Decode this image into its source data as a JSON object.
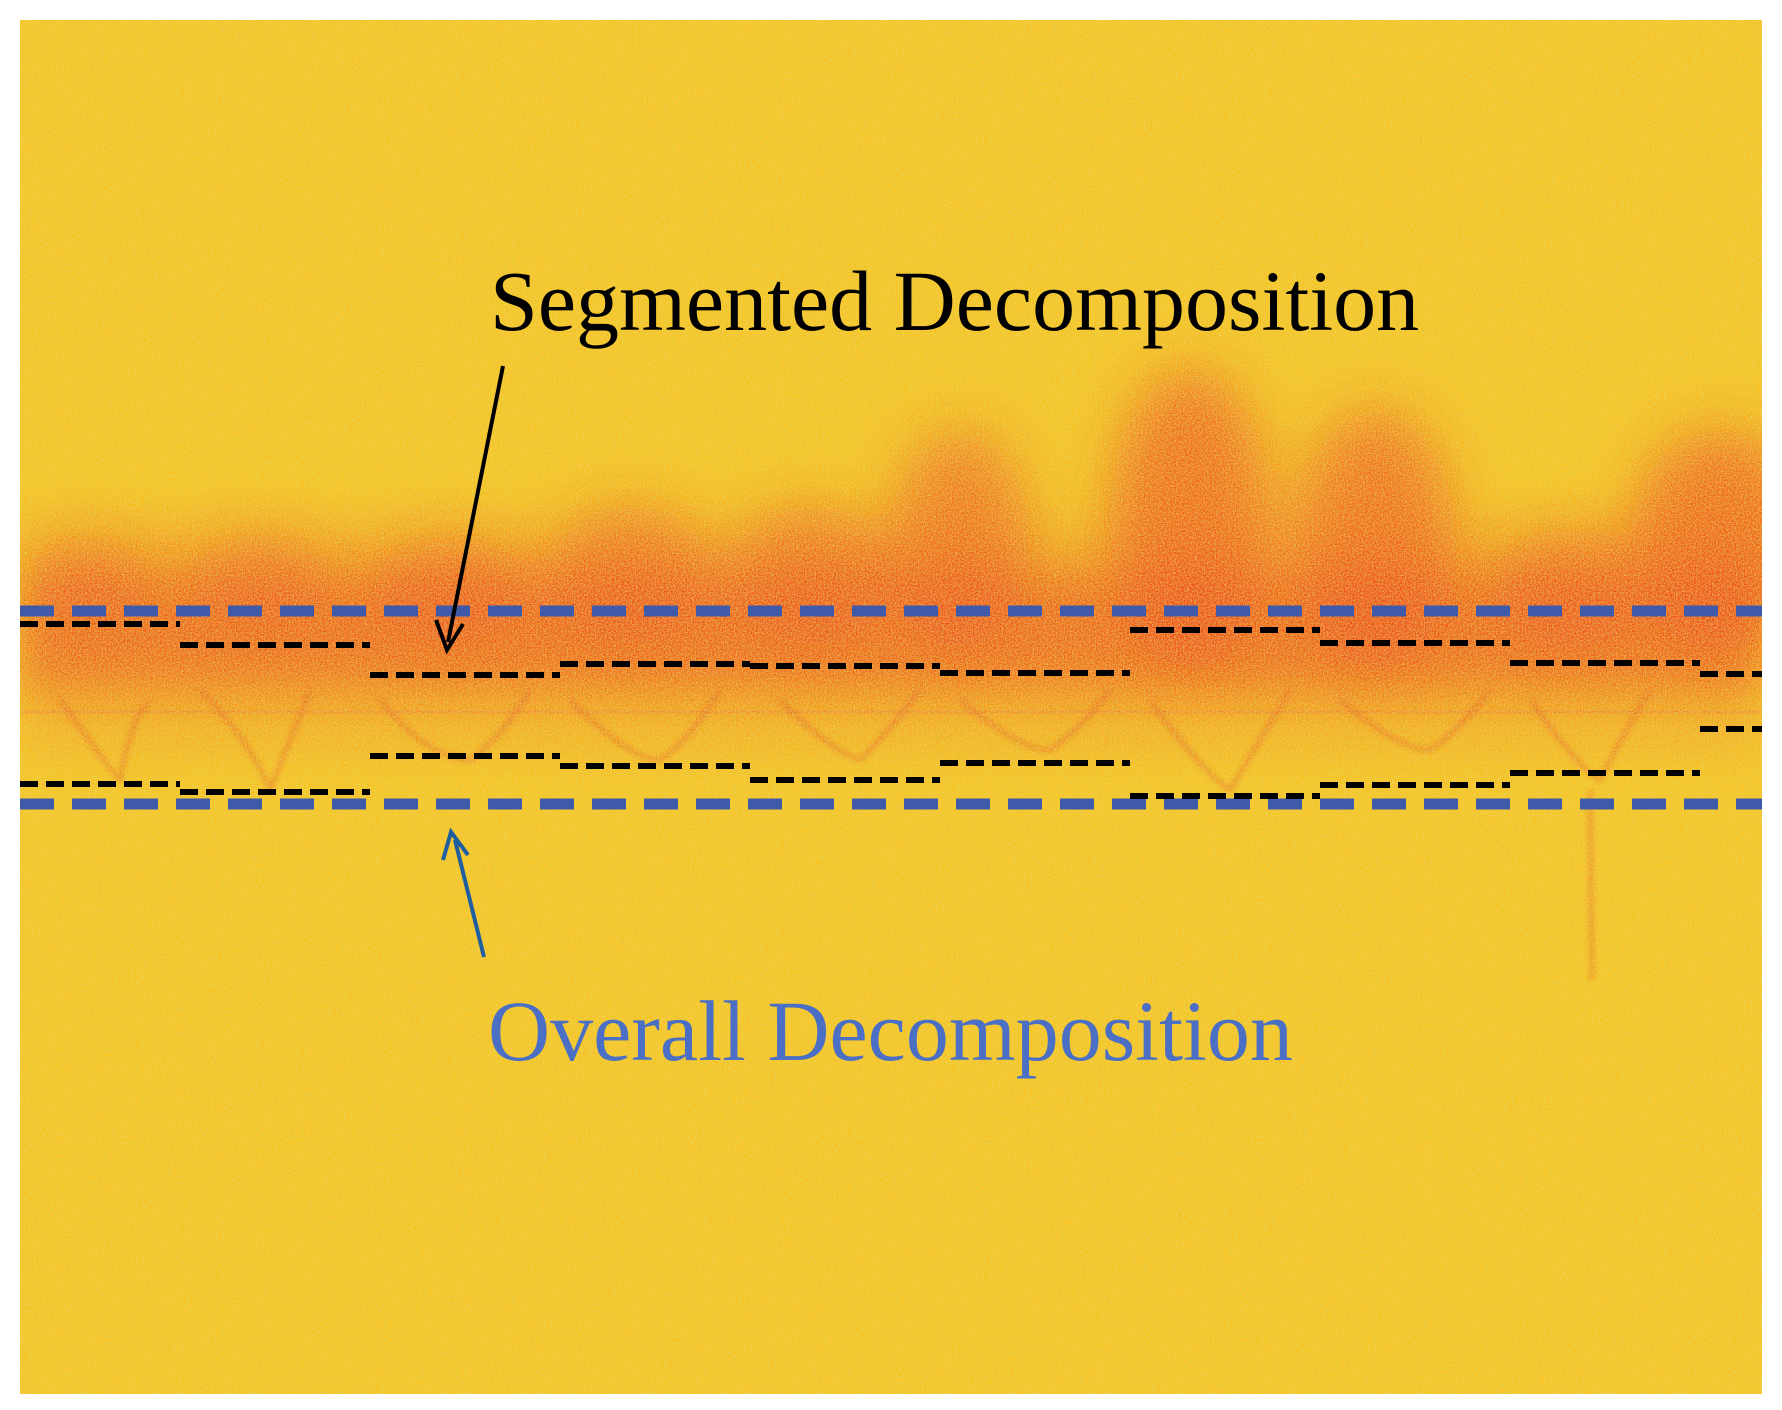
{
  "annotations": {
    "segmented_label": "Segmented Decomposition",
    "overall_label": "Overall Decomposition"
  },
  "colors": {
    "background_yellow": "#f9c21a",
    "band_red": "#ee2a10",
    "speckle_green": "#9ad34a",
    "overall_line": "#3f5aa8",
    "segmented_line": "#000000",
    "segmented_text": "#000000",
    "overall_text": "#4a6fc4",
    "overall_arrow": "#1f5fa0"
  }
}
